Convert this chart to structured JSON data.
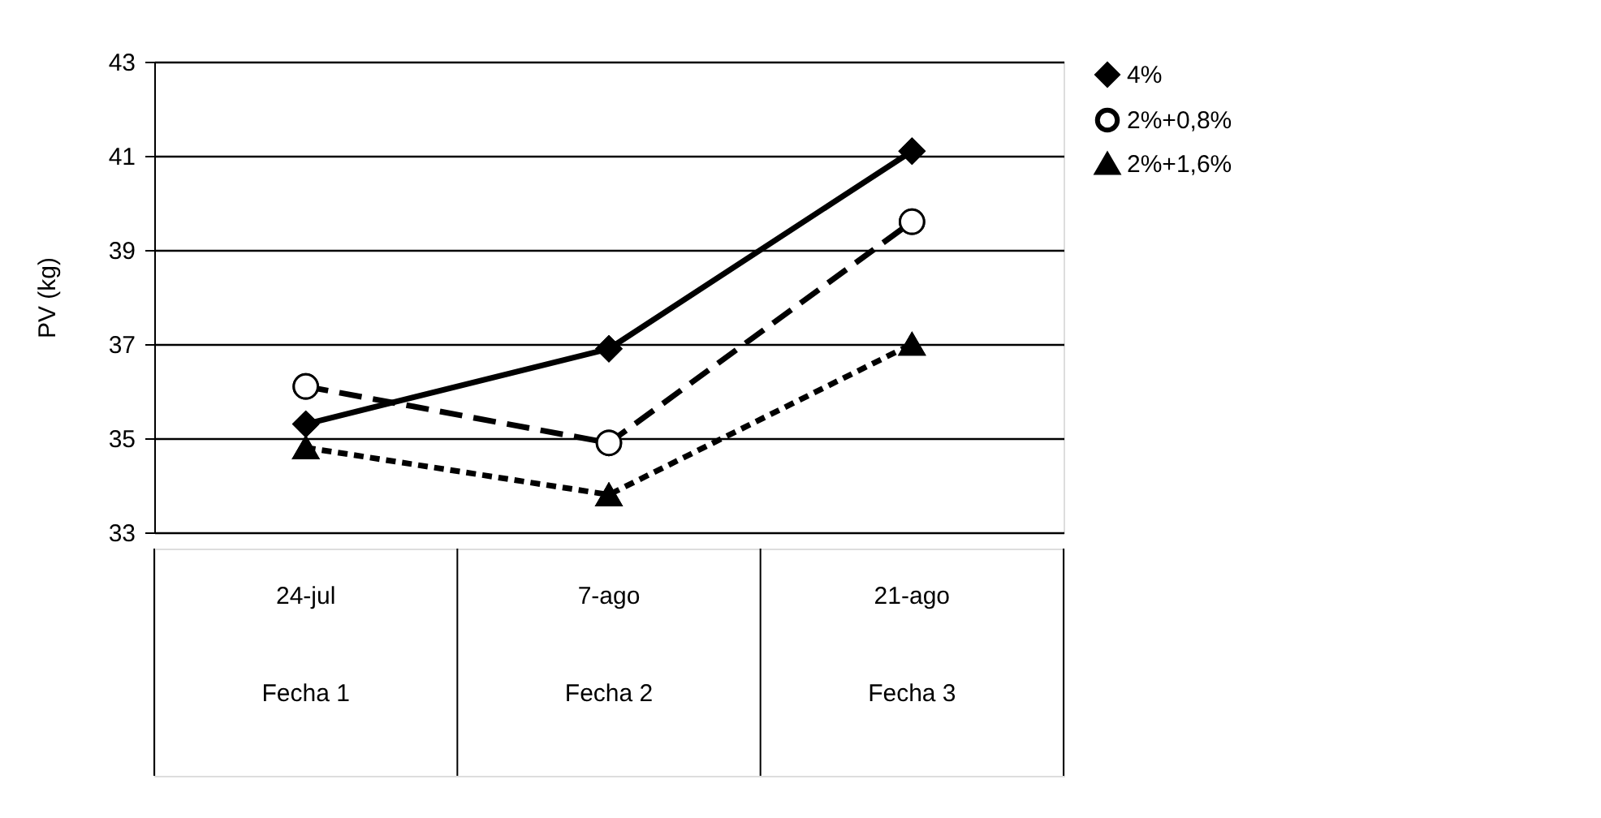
{
  "chart_data": {
    "type": "line",
    "ylabel": "PV (kg)",
    "categories": [
      "24-jul\nFecha 1",
      "7-ago\nFecha 2",
      "21-ago\nFecha 3"
    ],
    "series": [
      {
        "name": "4%",
        "color": "#000000",
        "values": [
          35.3,
          36.9,
          41.1
        ],
        "marker": "diamond",
        "line_style": "solid"
      },
      {
        "name": "2%+0,8%",
        "color": "#000000",
        "values": [
          36.1,
          34.9,
          39.6
        ],
        "marker": "circle",
        "line_style": "dashed"
      },
      {
        "name": "2%+1,6%",
        "color": "#000000",
        "values": [
          34.8,
          33.8,
          37.0
        ],
        "marker": "triangle",
        "line_style": "dotted"
      }
    ],
    "ylim": [
      33,
      43
    ],
    "yticks": [
      33,
      35,
      37,
      39,
      41,
      43
    ],
    "grid": "y",
    "legend": "right"
  }
}
